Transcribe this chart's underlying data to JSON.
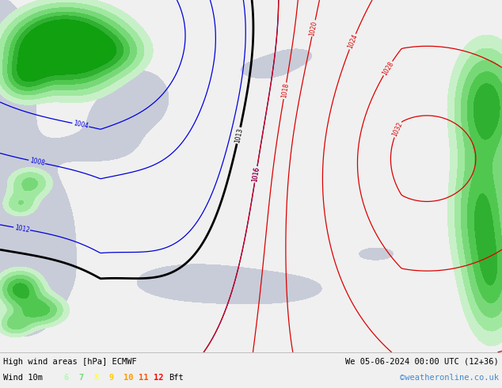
{
  "title_left": "High wind areas [hPa] ECMWF",
  "title_right": "We 05-06-2024 00:00 UTC (12+36)",
  "legend_label": "Wind 10m",
  "legend_values": [
    "6",
    "7",
    "8",
    "9",
    "10",
    "11",
    "12",
    "Bft"
  ],
  "legend_colors": [
    "#aaffaa",
    "#77dd77",
    "#ffff44",
    "#ffcc00",
    "#ff9900",
    "#ff5500",
    "#ff0000"
  ],
  "credit": "©weatheronline.co.uk",
  "credit_color": "#4488cc",
  "bottom_strip_color": "#f0f0f0",
  "land_color": "#d8d8c8",
  "sea_color": "#c8ccd8",
  "fig_width": 6.34,
  "fig_height": 4.9,
  "dpi": 100
}
